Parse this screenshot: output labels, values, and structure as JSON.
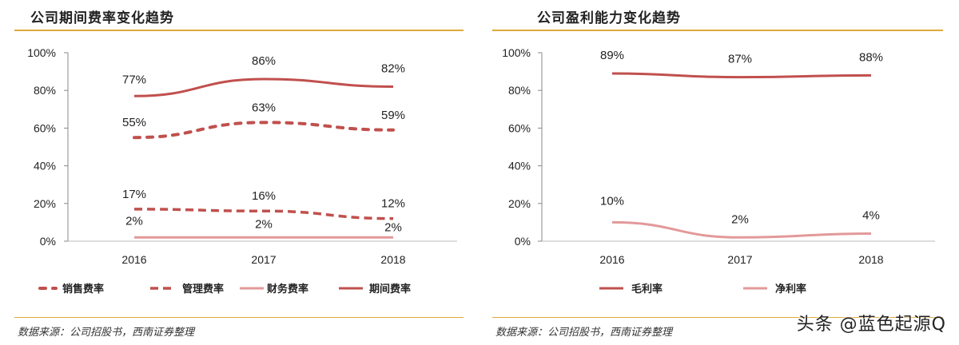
{
  "panels": {
    "left": {
      "title": "公司期间费率变化趋势",
      "source": "数据来源：公司招股书，西南证券整理"
    },
    "right": {
      "title": "公司盈利能力变化趋势",
      "source": "数据来源：公司招股书，西南证券整理"
    }
  },
  "watermark": "头条 @蓝色起源Q",
  "colors": {
    "dark_red": "#c0504d",
    "light_red": "#e3999a",
    "rule_gold": "#e0a93a"
  },
  "chart_data": [
    {
      "id": "left",
      "type": "line",
      "title": "公司期间费率变化趋势",
      "categories": [
        "2016",
        "2017",
        "2018"
      ],
      "ylim": [
        0,
        100
      ],
      "yticks": [
        0,
        20,
        40,
        60,
        80,
        100
      ],
      "ytick_labels": [
        "0%",
        "20%",
        "40%",
        "60%",
        "80%",
        "100%"
      ],
      "xlabel": "",
      "ylabel": "",
      "legend_position": "bottom",
      "series": [
        {
          "name": "销售费率",
          "values": [
            55,
            63,
            59
          ],
          "labels": [
            "55%",
            "63%",
            "59%"
          ],
          "style": "round-dash",
          "color": "#c0504d"
        },
        {
          "name": "管理费率",
          "values": [
            17,
            16,
            12
          ],
          "labels": [
            "17%",
            "16%",
            "12%"
          ],
          "style": "dash",
          "color": "#c0504d"
        },
        {
          "name": "财务费率",
          "values": [
            2,
            2,
            2
          ],
          "labels": [
            "2%",
            "2%",
            "2%"
          ],
          "style": "solid",
          "color": "#e3999a"
        },
        {
          "name": "期间费率",
          "values": [
            77,
            86,
            82
          ],
          "labels": [
            "77%",
            "86%",
            "82%"
          ],
          "style": "solid",
          "color": "#c0504d"
        }
      ]
    },
    {
      "id": "right",
      "type": "line",
      "title": "公司盈利能力变化趋势",
      "categories": [
        "2016",
        "2017",
        "2018"
      ],
      "ylim": [
        0,
        100
      ],
      "yticks": [
        0,
        20,
        40,
        60,
        80,
        100
      ],
      "ytick_labels": [
        "0%",
        "20%",
        "40%",
        "60%",
        "80%",
        "100%"
      ],
      "xlabel": "",
      "ylabel": "",
      "legend_position": "bottom",
      "series": [
        {
          "name": "毛利率",
          "values": [
            89,
            87,
            88
          ],
          "labels": [
            "89%",
            "87%",
            "88%"
          ],
          "style": "solid",
          "color": "#c0504d"
        },
        {
          "name": "净利率",
          "values": [
            10,
            2,
            4
          ],
          "labels": [
            "10%",
            "2%",
            "4%"
          ],
          "style": "solid",
          "color": "#e3999a"
        }
      ]
    }
  ]
}
